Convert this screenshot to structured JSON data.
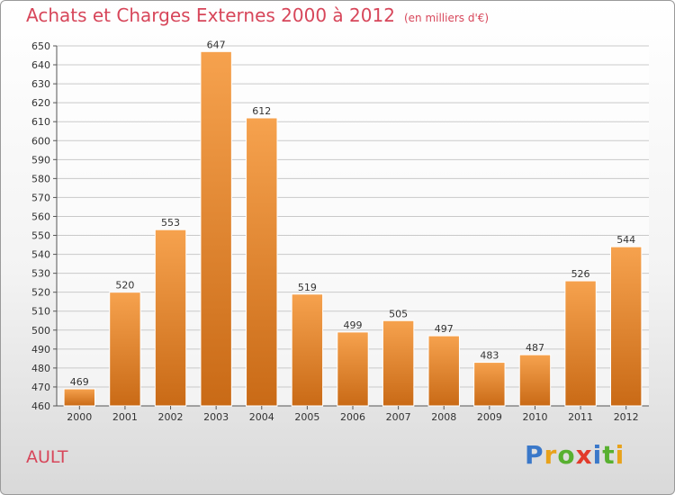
{
  "header": {
    "title": "Achats et Charges Externes 2000 à 2012",
    "subtitle": "(en milliers d'€)"
  },
  "footer": {
    "commune": "AULT",
    "logo_letters": [
      "P",
      "r",
      "o",
      "x",
      "i",
      "t",
      "i"
    ],
    "logo_colors": [
      "#3a78c9",
      "#e8a21a",
      "#58b030",
      "#e23b2b",
      "#3a78c9",
      "#58b030",
      "#e8a21a"
    ]
  },
  "colors": {
    "bar_light": "#f6a24e",
    "bar_dark": "#c96a16",
    "grid": "#c9c9c9",
    "text": "#333333",
    "accent": "#d7465a"
  },
  "chart_data": {
    "type": "bar",
    "title": "Achats et Charges Externes 2000 à 2012",
    "subtitle": "(en milliers d'€)",
    "categories": [
      "2000",
      "2001",
      "2002",
      "2003",
      "2004",
      "2005",
      "2006",
      "2007",
      "2008",
      "2009",
      "2010",
      "2011",
      "2012"
    ],
    "values": [
      469,
      520,
      553,
      647,
      612,
      519,
      499,
      505,
      497,
      483,
      487,
      526,
      544
    ],
    "ylim": [
      460,
      650
    ],
    "yticks": [
      460,
      470,
      480,
      490,
      500,
      510,
      520,
      530,
      540,
      550,
      560,
      570,
      580,
      590,
      600,
      610,
      620,
      630,
      640,
      650
    ],
    "grid": true,
    "xlabel": "",
    "ylabel": ""
  }
}
